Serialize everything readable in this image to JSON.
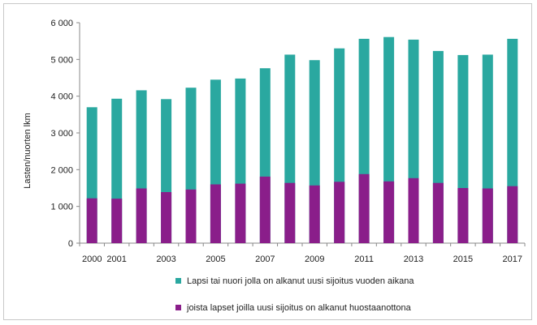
{
  "chart_data": {
    "type": "bar",
    "title": "",
    "xlabel": "",
    "ylabel": "Lasten/nuorten lkm",
    "ylim": [
      0,
      6000
    ],
    "y_ticks": [
      "0",
      "1 000",
      "2 000",
      "3 000",
      "4 000",
      "5 000",
      "6 000"
    ],
    "y_tick_values": [
      0,
      1000,
      2000,
      3000,
      4000,
      5000,
      6000
    ],
    "categories": [
      "2000",
      "2001",
      "2002",
      "2003",
      "2004",
      "2005",
      "2006",
      "2007",
      "2008",
      "2009",
      "2010",
      "2011",
      "2012",
      "2013",
      "2014",
      "2015",
      "2016",
      "2017"
    ],
    "x_tick_labels": [
      "2000",
      "2001",
      "",
      "2003",
      "",
      "2005",
      "",
      "2007",
      "",
      "2009",
      "",
      "2011",
      "",
      "2013",
      "",
      "2015",
      "",
      "2017"
    ],
    "grid": false,
    "legend_position": "bottom",
    "series": [
      {
        "name": "Lapsi tai nuori jolla on alkanut uusi sijoitus vuoden aikana",
        "color": "#2aa8a0",
        "values": [
          3700,
          3930,
          4160,
          3920,
          4230,
          4450,
          4480,
          4760,
          5130,
          4980,
          5300,
          5560,
          5610,
          5540,
          5230,
          5120,
          5130,
          5560
        ]
      },
      {
        "name": "joista lapset joilla uusi sijoitus on alkanut huostaanottona",
        "color": "#8a1e8a",
        "values": [
          1220,
          1210,
          1490,
          1390,
          1460,
          1600,
          1620,
          1810,
          1640,
          1570,
          1670,
          1880,
          1680,
          1770,
          1640,
          1500,
          1490,
          1550
        ]
      }
    ]
  }
}
